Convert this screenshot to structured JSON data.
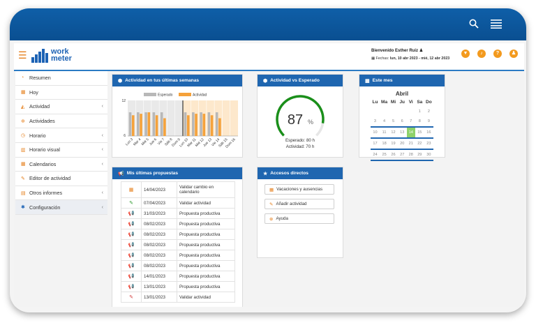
{
  "colors": {
    "brand": "#1f66b0",
    "accent": "#f39a1e",
    "gauge": "#1a8f1a",
    "expected_bar": "#b8b8b8",
    "activity_bar": "#f5a23b",
    "today": "#8ed26a"
  },
  "topbar": {
    "icons": [
      "search-icon",
      "menu-icon"
    ]
  },
  "header": {
    "logo_line1": "work",
    "logo_line2": "meter",
    "welcome": "Bienvenido Esther Ruiz",
    "dates_label": "Fechas:",
    "dates_value": "lun, 10 abr 2023 - mié, 12 abr 2023",
    "buttons": [
      "filter-icon",
      "bell-icon",
      "help-icon",
      "user-icon"
    ]
  },
  "sidebar": {
    "items": [
      {
        "label": "Resumen",
        "icon": "dashboard-icon",
        "glyph": "◔",
        "chevron": false
      },
      {
        "label": "Hoy",
        "icon": "calendar-icon",
        "glyph": "▦",
        "chevron": false
      },
      {
        "label": "Actividad",
        "icon": "area-chart-icon",
        "glyph": "◭",
        "chevron": true
      },
      {
        "label": "Actividades",
        "icon": "cogs-icon",
        "glyph": "✲",
        "chevron": false
      },
      {
        "label": "Horario",
        "icon": "clock-icon",
        "glyph": "◷",
        "chevron": true
      },
      {
        "label": "Horario visual",
        "icon": "bar-chart-icon",
        "glyph": "▥",
        "chevron": true
      },
      {
        "label": "Calendarios",
        "icon": "calendar-icon",
        "glyph": "▦",
        "chevron": true
      },
      {
        "label": "Editor de actividad",
        "icon": "edit-icon",
        "glyph": "✎",
        "chevron": false
      },
      {
        "label": "Otros informes",
        "icon": "table-icon",
        "glyph": "▤",
        "chevron": true
      },
      {
        "label": "Configuración",
        "icon": "gear-icon",
        "glyph": "✱",
        "chevron": true
      }
    ]
  },
  "activity_panel": {
    "title": "Actividad en tus últimas semanas",
    "legend_expected": "Esperado",
    "legend_activity": "Actividad"
  },
  "chart_data": {
    "type": "bar",
    "title": "Actividad en tus últimas semanas",
    "categories": [
      "Lun 3",
      "Mar 4",
      "Mié 5",
      "Jue 6",
      "Vie 7",
      "Sáb 8",
      "Dom 9",
      "Lun 10",
      "Mar 11",
      "Mié 12",
      "Jue 13",
      "Vie 14",
      "Sáb 15",
      "Dom 16"
    ],
    "series": [
      {
        "name": "Esperado",
        "values": [
          8,
          8,
          8,
          8,
          8,
          0,
          0,
          8,
          8,
          8,
          8,
          8,
          0,
          0
        ]
      },
      {
        "name": "Actividad",
        "values": [
          7,
          7.5,
          8,
          7,
          6,
          0,
          0,
          7,
          7.5,
          7.5,
          7,
          6,
          0,
          0
        ]
      }
    ],
    "y_ticks": [
      "12",
      "6"
    ],
    "ylim": [
      0,
      12
    ],
    "legend": "top",
    "grid": false
  },
  "gauge_panel": {
    "title": "Actividad vs Esperado",
    "value": "87",
    "unit": "%",
    "fraction": 0.87,
    "expected": "Esperado: 80 h",
    "activity": "Actividad: 70 h"
  },
  "calendar_panel": {
    "title": "Este mes",
    "month": "Abril",
    "weekdays": [
      "Lu",
      "Ma",
      "Mi",
      "Ju",
      "Vi",
      "Sa",
      "Do"
    ],
    "weeks": [
      [
        "",
        "",
        "",
        "",
        "",
        "1",
        "2"
      ],
      [
        "3",
        "4",
        "5",
        "6",
        "7",
        "8",
        "9"
      ],
      [
        "10",
        "11",
        "12",
        "13",
        "14",
        "15",
        "16"
      ],
      [
        "17",
        "18",
        "19",
        "20",
        "21",
        "22",
        "23"
      ],
      [
        "24",
        "25",
        "26",
        "27",
        "28",
        "29",
        "30"
      ]
    ],
    "today": "14"
  },
  "proposals_panel": {
    "title": "Mis últimas propuestas",
    "rows": [
      {
        "icon": "calendar-icon",
        "glyph": "▦",
        "color": "#e57f1c",
        "date": "14/04/2023",
        "text": "Validar cambio en calendario"
      },
      {
        "icon": "edit-icon",
        "glyph": "✎",
        "color": "#2e9a2e",
        "date": "07/04/2023",
        "text": "Validar actividad"
      },
      {
        "icon": "megaphone-icon",
        "glyph": "📢",
        "color": "#e5a81c",
        "date": "31/03/2023",
        "text": "Propuesta productiva"
      },
      {
        "icon": "megaphone-icon",
        "glyph": "📢",
        "color": "#2e9a2e",
        "date": "08/02/2023",
        "text": "Propuesta productiva"
      },
      {
        "icon": "megaphone-icon",
        "glyph": "📢",
        "color": "#2e9a2e",
        "date": "08/02/2023",
        "text": "Propuesta productiva"
      },
      {
        "icon": "megaphone-icon",
        "glyph": "📢",
        "color": "#2e9a2e",
        "date": "08/02/2023",
        "text": "Propuesta productiva"
      },
      {
        "icon": "megaphone-icon",
        "glyph": "📢",
        "color": "#2e9a2e",
        "date": "08/02/2023",
        "text": "Propuesta productiva"
      },
      {
        "icon": "megaphone-icon",
        "glyph": "📢",
        "color": "#2e9a2e",
        "date": "08/02/2023",
        "text": "Propuesta productiva"
      },
      {
        "icon": "megaphone-icon",
        "glyph": "📢",
        "color": "#2e9a2e",
        "date": "14/01/2023",
        "text": "Propuesta productiva"
      },
      {
        "icon": "megaphone-icon",
        "glyph": "📢",
        "color": "#2e9a2e",
        "date": "13/01/2023",
        "text": "Propuesta productiva"
      },
      {
        "icon": "edit-icon",
        "glyph": "✎",
        "color": "#d23a3a",
        "date": "13/01/2023",
        "text": "Validar actividad"
      }
    ]
  },
  "shortcuts_panel": {
    "title": "Accesos directos",
    "items": [
      {
        "label": "Vacaciones y ausencias",
        "icon": "calendar-icon",
        "glyph": "▦"
      },
      {
        "label": "Añadir actividad",
        "icon": "edit-icon",
        "glyph": "✎"
      },
      {
        "label": "Ayuda",
        "icon": "help-icon",
        "glyph": "⊕"
      }
    ]
  }
}
